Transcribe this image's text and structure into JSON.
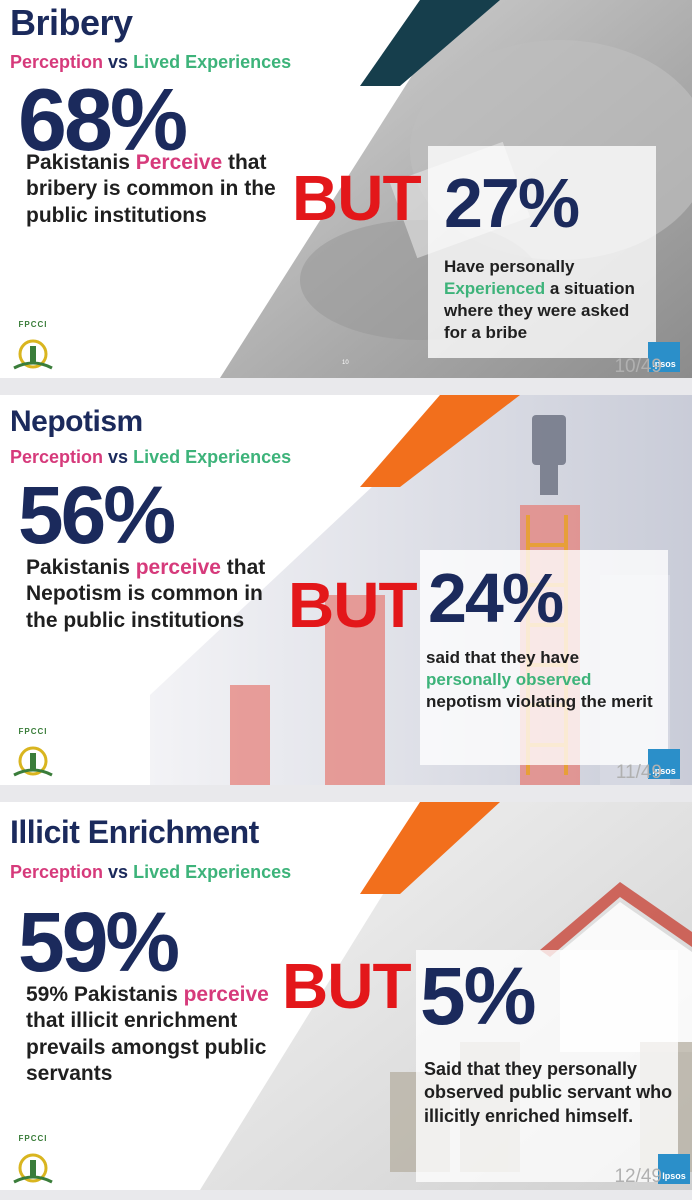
{
  "colors": {
    "navy": "#1b2a5c",
    "pink": "#d63a7b",
    "green": "#3db37a",
    "red": "#e3171a",
    "teal_stripe": "#163e4c",
    "orange_stripe": "#f26f1c",
    "ipsos_blue": "#2b8fc9"
  },
  "slides": [
    {
      "title": "Bribery",
      "subtitle_a": "Perception",
      "subtitle_vs": "vs",
      "subtitle_b": "Lived Experiences",
      "big_pct": "68%",
      "para_1": "Pakistanis ",
      "para_hl": "Perceive",
      "para_2": " that bribery is common in the public institutions",
      "but": "BUT",
      "right_pct": "27%",
      "right_1": "Have personally ",
      "right_hl": "Experienced",
      "right_2": " a situation where they were asked for a bribe",
      "page": "10/49",
      "tiny_page": "10",
      "logo_text": "FPCCI",
      "ipsos": "Ipsos",
      "stripe_icon": "teal-diagonal-stripe",
      "bg_icon": "hands-exchanging-envelope-photo"
    },
    {
      "title": "Nepotism",
      "subtitle_a": "Perception",
      "subtitle_vs": "vs",
      "subtitle_b": "Lived Experiences",
      "big_pct": "56%",
      "para_1": "Pakistanis ",
      "para_hl": "perceive",
      "para_2": " that Nepotism is common in the public institutions",
      "but": "BUT",
      "right_pct": "24%",
      "right_1": "said that they have ",
      "right_hl": "personally observed",
      "right_2": " nepotism violating the merit",
      "page": "11/49",
      "logo_text": "FPCCI",
      "ipsos": "Ipsos",
      "stripe_icon": "orange-diagonal-stripe",
      "bg_icon": "bar-chart-ladder-chair-photo"
    },
    {
      "title": "Illicit Enrichment",
      "subtitle_a": "Perception",
      "subtitle_vs": "vs",
      "subtitle_b": "Lived Experiences",
      "big_pct": "59%",
      "para_0": "59% Pakistanis ",
      "para_hl": "perceive",
      "para_2": " that illicit enrichment prevails amongst public servants",
      "but": "BUT",
      "right_pct": "5%",
      "right_1": "Said that they personally observed public servant who illicitly enriched himself.",
      "page": "12/49",
      "logo_text": "FPCCI",
      "ipsos": "Ipsos",
      "stripe_icon": "orange-diagonal-stripe",
      "bg_icon": "house-and-coins-photo"
    }
  ]
}
